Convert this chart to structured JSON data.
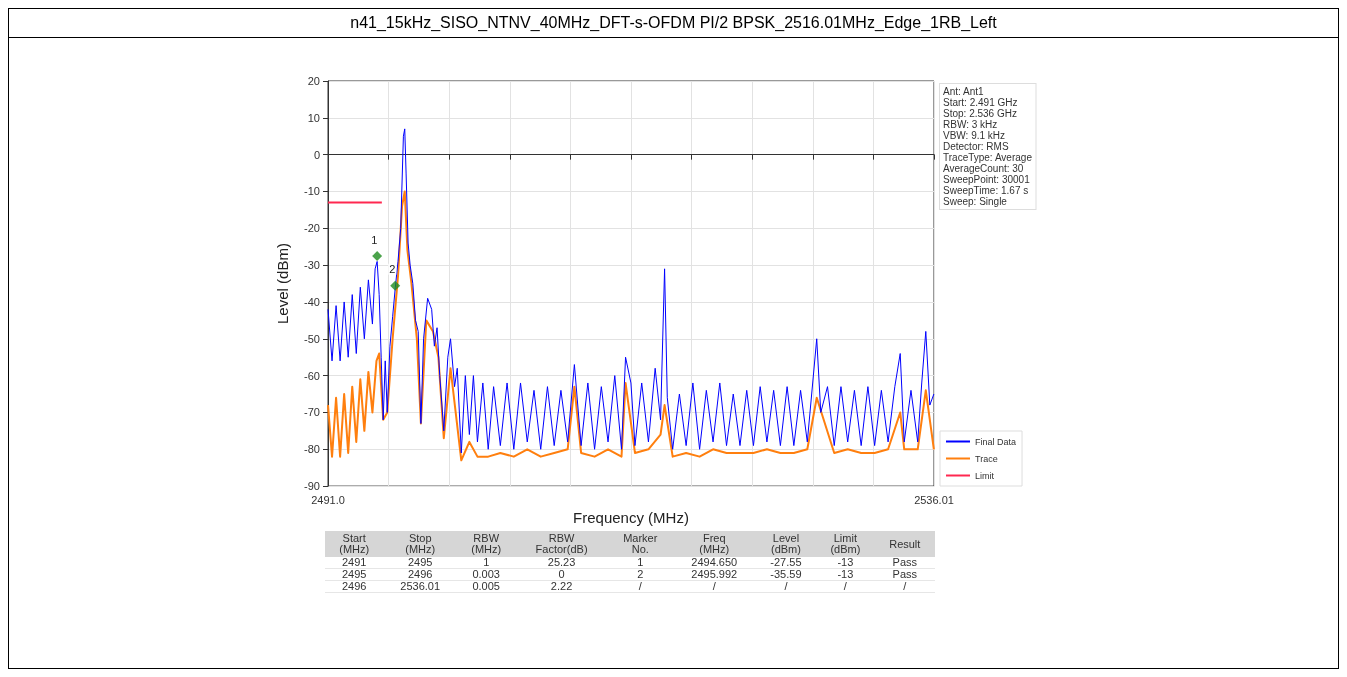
{
  "chart_data": [
    {
      "type": "line",
      "title": "n41_15kHz_SISO_NTNV_40MHz_DFT-s-OFDM PI/2 BPSK_2516.01MHz_Edge_1RB_Left",
      "xlabel": "Frequency (MHz)",
      "ylabel": "Level (dBm)",
      "xlim": [
        2491.0,
        2536.01
      ],
      "xticks": [
        {
          "value": 2491.0,
          "label": "2491.0"
        },
        {
          "value": 2495.501,
          "label": null
        },
        {
          "value": 2500.002,
          "label": null
        },
        {
          "value": 2504.503,
          "label": null
        },
        {
          "value": 2509.004,
          "label": null
        },
        {
          "value": 2513.505,
          "label": null
        },
        {
          "value": 2518.006,
          "label": null
        },
        {
          "value": 2522.507,
          "label": null
        },
        {
          "value": 2527.008,
          "label": null
        },
        {
          "value": 2531.509,
          "label": null
        },
        2536.01
      ],
      "ylim": [
        -90,
        20
      ],
      "yticks": [
        -90,
        -80,
        -70,
        -60,
        -50,
        -40,
        -30,
        -20,
        -10,
        0,
        10,
        20
      ],
      "grid": true,
      "legend": "bottom right",
      "marker": "none",
      "annotations": [
        {
          "text": "1",
          "x": 2494.65,
          "y": -27.55
        },
        {
          "text": "2",
          "x": 2495.992,
          "y": -35.59
        },
        "Ant: Ant1",
        "Start: 2.491 GHz",
        "Stop: 2.536 GHz",
        "RBW: 3 kHz",
        "VBW: 9.1 kHz",
        "Detector: RMS",
        "TraceType: Average",
        "AverageCount: 30",
        "SweepPoint: 30001",
        "SweepTime: 1.67 s",
        "Sweep: Single"
      ],
      "series": [
        {
          "name": "Final Data",
          "color": "#0000ff",
          "x": [
            2491.0,
            2491.3,
            2491.6,
            2491.9,
            2492.2,
            2492.5,
            2492.8,
            2493.1,
            2493.4,
            2493.7,
            2494.0,
            2494.3,
            2494.5,
            2494.65,
            2494.8,
            2494.95,
            2495.1,
            2495.25,
            2495.4,
            2495.6,
            2495.8,
            2496.0,
            2496.2,
            2496.4,
            2496.6,
            2496.7,
            2496.8,
            2496.95,
            2497.1,
            2497.3,
            2497.5,
            2497.7,
            2497.9,
            2498.1,
            2498.4,
            2498.7,
            2498.9,
            2499.1,
            2499.3,
            2499.6,
            2499.9,
            2500.1,
            2500.4,
            2500.6,
            2500.9,
            2501.2,
            2501.5,
            2501.8,
            2502.1,
            2502.5,
            2502.9,
            2503.3,
            2503.8,
            2504.3,
            2504.8,
            2505.3,
            2505.8,
            2506.3,
            2506.8,
            2507.3,
            2507.8,
            2508.3,
            2508.8,
            2509.3,
            2509.8,
            2510.3,
            2510.8,
            2511.3,
            2511.8,
            2512.3,
            2512.8,
            2513.1,
            2513.5,
            2513.8,
            2514.3,
            2514.8,
            2515.3,
            2515.7,
            2516.0,
            2516.2,
            2516.6,
            2517.1,
            2517.6,
            2518.1,
            2518.6,
            2519.1,
            2519.6,
            2520.1,
            2520.6,
            2521.1,
            2521.6,
            2522.1,
            2522.6,
            2523.1,
            2523.6,
            2524.1,
            2524.6,
            2525.1,
            2525.6,
            2526.1,
            2526.6,
            2527.3,
            2527.6,
            2528.1,
            2528.6,
            2529.1,
            2529.6,
            2530.1,
            2530.6,
            2531.1,
            2531.6,
            2532.1,
            2532.6,
            2533.1,
            2533.5,
            2533.8,
            2534.3,
            2534.8,
            2535.1,
            2535.4,
            2535.7,
            2536.0
          ],
          "values": [
            -42,
            -56,
            -41,
            -56,
            -40,
            -55,
            -38,
            -54,
            -36,
            -50,
            -34,
            -46,
            -31,
            -29,
            -38,
            -55,
            -72,
            -56,
            -70,
            -52,
            -44,
            -36,
            -29,
            -20,
            5,
            7,
            -5,
            -24,
            -30,
            -35,
            -45,
            -48,
            -73,
            -50,
            -39,
            -42,
            -52,
            -47,
            -60,
            -75,
            -55,
            -50,
            -63,
            -58,
            -81,
            -60,
            -76,
            -60,
            -78,
            -62,
            -80,
            -63,
            -79,
            -62,
            -80,
            -62,
            -78,
            -64,
            -80,
            -63,
            -79,
            -64,
            -78,
            -57,
            -79,
            -62,
            -80,
            -63,
            -78,
            -60,
            -80,
            -55,
            -62,
            -79,
            -62,
            -78,
            -58,
            -72,
            -31,
            -66,
            -80,
            -65,
            -79,
            -62,
            -80,
            -64,
            -78,
            -62,
            -79,
            -65,
            -79,
            -64,
            -79,
            -63,
            -78,
            -64,
            -79,
            -63,
            -79,
            -64,
            -78,
            -50,
            -70,
            -63,
            -79,
            -63,
            -78,
            -64,
            -79,
            -63,
            -79,
            -64,
            -78,
            -63,
            -54,
            -78,
            -64,
            -78,
            -62,
            -48,
            -68,
            -65
          ]
        },
        {
          "name": "Trace",
          "color": "#ff7f0e",
          "x": [
            2491.0,
            2491.3,
            2491.6,
            2491.9,
            2492.2,
            2492.5,
            2492.8,
            2493.1,
            2493.4,
            2493.7,
            2494.0,
            2494.3,
            2494.6,
            2494.8,
            2495.1,
            2495.4,
            2495.8,
            2496.2,
            2496.5,
            2496.7,
            2496.9,
            2497.2,
            2497.6,
            2497.9,
            2498.3,
            2498.8,
            2499.2,
            2499.6,
            2500.1,
            2500.9,
            2501.5,
            2502.1,
            2502.9,
            2503.8,
            2504.8,
            2505.8,
            2506.8,
            2507.8,
            2508.8,
            2509.3,
            2509.8,
            2510.8,
            2511.8,
            2512.8,
            2513.1,
            2513.8,
            2514.8,
            2515.7,
            2516.0,
            2516.6,
            2517.6,
            2518.6,
            2519.6,
            2520.6,
            2521.6,
            2522.6,
            2523.6,
            2524.6,
            2525.6,
            2526.6,
            2527.3,
            2528.6,
            2529.6,
            2530.6,
            2531.6,
            2532.6,
            2533.5,
            2533.8,
            2534.8,
            2535.4,
            2536.0
          ],
          "values": [
            -68,
            -82,
            -66,
            -82,
            -65,
            -81,
            -63,
            -78,
            -61,
            -75,
            -59,
            -70,
            -56,
            -54,
            -72,
            -70,
            -50,
            -33,
            -14,
            -10,
            -26,
            -35,
            -50,
            -73,
            -45,
            -48,
            -55,
            -77,
            -58,
            -83,
            -78,
            -82,
            -82,
            -81,
            -82,
            -80,
            -82,
            -81,
            -80,
            -63,
            -81,
            -82,
            -80,
            -82,
            -62,
            -81,
            -80,
            -76,
            -68,
            -82,
            -81,
            -82,
            -80,
            -81,
            -81,
            -81,
            -80,
            -81,
            -81,
            -80,
            -66,
            -81,
            -80,
            -81,
            -81,
            -80,
            -70,
            -80,
            -80,
            -64,
            -80
          ]
        },
        {
          "name": "Limit",
          "color": "#ff2850",
          "x": [
            2491.0,
            2495.0
          ],
          "values": [
            -13,
            -13
          ]
        },
        {
          "type": "scatter",
          "color": "#1e8c1e",
          "marker": "diamond",
          "x": [
            2494.65,
            2495.992
          ],
          "values": [
            -27.55,
            -35.59
          ]
        }
      ]
    },
    {
      "type": "other",
      "categories": [
        "Start\n(MHz)",
        "Stop\n(MHz)",
        "RBW\n(MHz)",
        "RBW\nFactor(dB)",
        "Marker\nNo.",
        "Freq\n(MHz)",
        "Level\n(dBm)",
        "Limit\n(dBm)",
        "Result"
      ],
      "cell_labels": [
        [
          "2491",
          "2495",
          "1",
          "25.23",
          "1",
          "2494.650",
          "-27.55",
          "-13",
          "Pass"
        ],
        [
          "2495",
          "2496",
          "0.003",
          "0",
          "2",
          "2495.992",
          "-35.59",
          "-13",
          "Pass"
        ],
        [
          "2496",
          "2536.01",
          "0.005",
          "2.22",
          "/",
          "/",
          "/",
          "/",
          "/"
        ]
      ]
    }
  ]
}
